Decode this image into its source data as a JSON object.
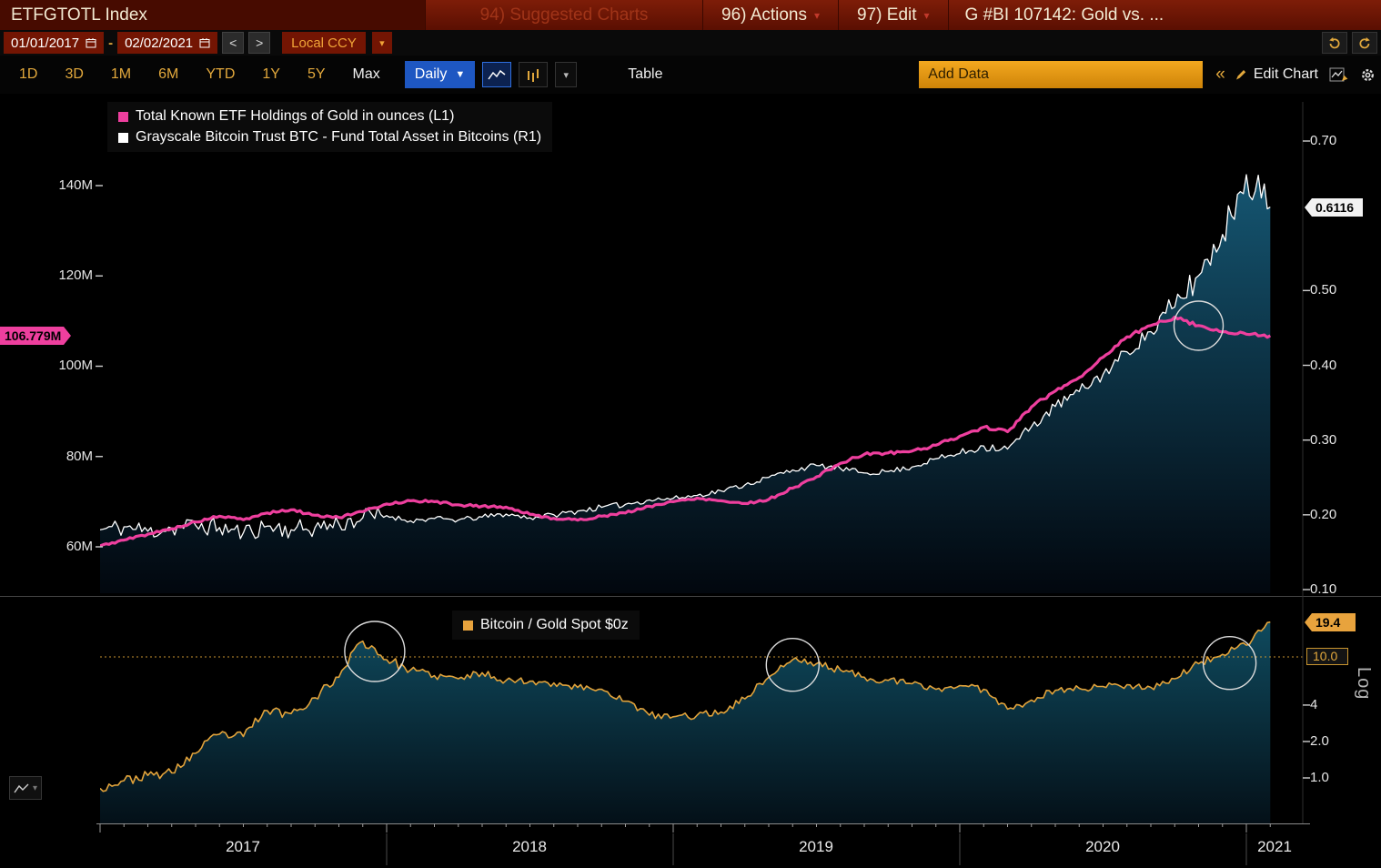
{
  "titlebar": {
    "ticker": "ETFGTOTL Index",
    "menu_suggested": "94) Suggested Charts",
    "menu_actions": "96) Actions",
    "menu_edit": "97) Edit",
    "title": "G #BI 107142: Gold vs. ..."
  },
  "datebar": {
    "start_date": "01/01/2017",
    "range_sep": "-",
    "end_date": "02/02/2021",
    "prev": "<",
    "next": ">",
    "currency": "Local CCY"
  },
  "toolbar": {
    "periods": [
      "1D",
      "3D",
      "1M",
      "6M",
      "YTD",
      "1Y",
      "5Y",
      "Max"
    ],
    "frequency_label": "Daily",
    "table_label": "Table",
    "add_data_value": "Add Data",
    "edit_chart_label": "Edit Chart"
  },
  "icons": {
    "dropdown_arrow": "▾",
    "freq_arrow": "▼",
    "collapse": "«"
  },
  "chart_data": {
    "type": "line",
    "x_start": "2017-01",
    "x_end": "2021-02",
    "x_unit": "month",
    "year_labels": [
      "2017",
      "2018",
      "2019",
      "2020",
      "2021"
    ],
    "panels": [
      {
        "id": "main",
        "legend": [
          {
            "label": "Total Known ETF Holdings of Gold in ounces (L1)",
            "color": "#ee3f9e"
          },
          {
            "label": "Grayscale Bitcoin Trust BTC - Fund Total Asset in Bitcoins (R1)",
            "color": "#ffffff"
          }
        ],
        "left_axis": {
          "ticks": [
            "140M",
            "120M",
            "100M",
            "80M",
            "60M"
          ],
          "tick_values": [
            140,
            120,
            100,
            80,
            60
          ],
          "range": [
            49.5,
            158.5
          ],
          "badge": "106.779M",
          "badge_value": 106.779,
          "badge_color": "#ee3f9e"
        },
        "right_axis": {
          "ticks": [
            "0.70",
            "0.50",
            "0.40",
            "0.30",
            "0.20",
            "0.10"
          ],
          "tick_values": [
            0.7,
            0.5,
            0.4,
            0.3,
            0.2,
            0.1
          ],
          "range": [
            0.095,
            0.752
          ],
          "badge": "0.6116",
          "badge_value": 0.6116,
          "badge_color": "#f2f2f2"
        },
        "series": [
          {
            "name": "grayscale_btc_trust_fund_total_asset",
            "axis": "right",
            "color": "#ffffff",
            "width": 1.3,
            "seed": 11,
            "fill": [
              "#155672",
              "#02070e"
            ],
            "jitter": [
              {
                "until_month": 12,
                "pct": 0.07
              },
              {
                "until_month": 24,
                "pct": 0.018
              },
              {
                "until_month": 36,
                "pct": 0.014
              },
              {
                "until_month": 44,
                "pct": 0.022
              },
              {
                "until_month": 60,
                "pct": 0.04
              }
            ],
            "monthly_values": [
              0.18,
              0.184,
              0.178,
              0.182,
              0.186,
              0.183,
              0.176,
              0.185,
              0.18,
              0.183,
              0.188,
              0.196,
              0.199,
              0.192,
              0.195,
              0.193,
              0.197,
              0.201,
              0.196,
              0.2,
              0.205,
              0.21,
              0.214,
              0.22,
              0.222,
              0.226,
              0.232,
              0.24,
              0.25,
              0.26,
              0.266,
              0.262,
              0.256,
              0.258,
              0.264,
              0.275,
              0.282,
              0.292,
              0.288,
              0.318,
              0.345,
              0.365,
              0.388,
              0.418,
              0.445,
              0.478,
              0.52,
              0.575,
              0.655,
              0.6116
            ]
          },
          {
            "name": "total_known_etf_holdings_of_gold",
            "axis": "left",
            "color": "#ee3f9e",
            "width": 3.2,
            "seed": 5,
            "jitter": [
              {
                "until_month": 60,
                "pct": 0.004
              }
            ],
            "monthly_values": [
              60.2,
              61.5,
              62.8,
              64.0,
              65.5,
              66.8,
              66.0,
              67.5,
              68.2,
              67.0,
              66.5,
              67.8,
              69.5,
              70.2,
              70.0,
              69.3,
              69.0,
              68.8,
              67.2,
              66.3,
              65.9,
              66.8,
              67.5,
              69.0,
              70.0,
              70.8,
              70.2,
              69.6,
              70.5,
              73.0,
              75.5,
              78.5,
              80.5,
              80.8,
              81.2,
              82.5,
              84.5,
              86.5,
              85.5,
              91.0,
              94.5,
              97.5,
              102.0,
              106.5,
              109.0,
              110.9,
              109.0,
              107.6,
              107.1,
              106.779
            ]
          }
        ]
      },
      {
        "id": "ratio",
        "legend": [
          {
            "label": "Bitcoin / Gold Spot $0z",
            "color": "#e8a33d"
          }
        ],
        "right_axis": {
          "scale": "log",
          "label": "Log",
          "ticks": [
            "4",
            "2.0",
            "1.0"
          ],
          "tick_values": [
            4,
            2,
            1
          ],
          "badges": [
            {
              "text": "19.4",
              "value": 19.4,
              "style": "amber"
            },
            {
              "text": "10.0",
              "value": 10.0,
              "style": "outline",
              "dotted_line": true
            }
          ]
        },
        "series": [
          {
            "name": "bitcoin_gold_spot_ratio",
            "axis": "log",
            "color": "#e2a33b",
            "width": 1.6,
            "seed": 23,
            "fill": [
              "#0f4a5e",
              "#041018"
            ],
            "jitter": [
              {
                "until_month": 13,
                "pct": 0.09
              },
              {
                "until_month": 60,
                "pct": 0.07
              }
            ],
            "monthly_values": [
              0.82,
              0.95,
              1.05,
              1.1,
              1.6,
              2.3,
              2.2,
              3.6,
              3.4,
              4.6,
              6.8,
              13.5,
              9.5,
              7.8,
              7.0,
              6.6,
              7.4,
              6.4,
              6.3,
              6.1,
              5.6,
              5.4,
              4.3,
              3.3,
              3.2,
              3.3,
              3.5,
              4.5,
              6.8,
              9.5,
              8.8,
              7.8,
              6.8,
              6.4,
              6.0,
              5.4,
              5.8,
              5.4,
              3.7,
              4.4,
              5.3,
              5.5,
              5.7,
              5.9,
              5.6,
              6.6,
              8.8,
              10.5,
              12.5,
              19.4
            ]
          }
        ]
      }
    ],
    "annotations": [
      {
        "panel": "main",
        "month": 46.0,
        "value": 0.453,
        "r": 27
      },
      {
        "panel": "ratio",
        "month": 11.5,
        "value": 11.1,
        "r": 33
      },
      {
        "panel": "ratio",
        "month": 29.0,
        "value": 8.6,
        "r": 29
      },
      {
        "panel": "ratio",
        "month": 47.3,
        "value": 8.9,
        "r": 29
      }
    ]
  }
}
